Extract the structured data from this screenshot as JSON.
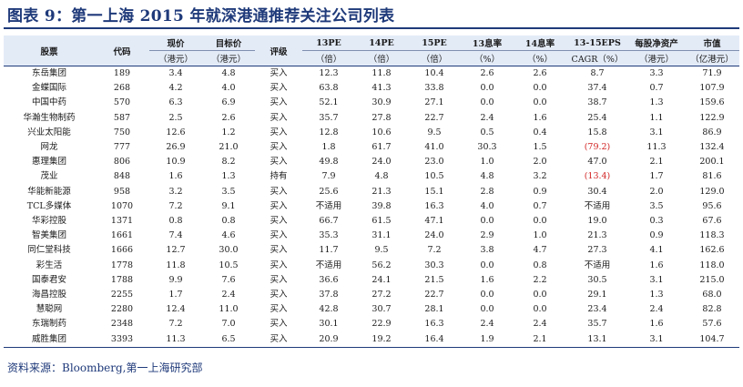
{
  "title": "图表 9：第一上海 2015 年就深港通推荐关注公司列表",
  "table": {
    "headers": [
      "股票",
      "代码",
      "现价",
      "目标价",
      "评级",
      "13PE",
      "14PE",
      "15PE",
      "13息率",
      "14息率",
      "13-15EPS",
      "每股净资产",
      "市值"
    ],
    "units": [
      "",
      "",
      "（港元）",
      "（港元）",
      "",
      "（倍）",
      "（倍）",
      "（倍）",
      "（%）",
      "（%）",
      "CAGR（%）",
      "（港元）",
      "（亿港元）"
    ],
    "rows": [
      [
        "东岳集团",
        "189",
        "3.4",
        "4.8",
        "买入",
        "12.3",
        "11.8",
        "10.4",
        "2.6",
        "2.6",
        "8.7",
        "3.3",
        "71.9"
      ],
      [
        "金蝶国际",
        "268",
        "4.2",
        "4.0",
        "买入",
        "63.8",
        "41.3",
        "33.8",
        "0.0",
        "0.0",
        "37.4",
        "0.7",
        "107.9"
      ],
      [
        "中国中药",
        "570",
        "6.3",
        "6.9",
        "买入",
        "52.1",
        "30.9",
        "27.1",
        "0.0",
        "0.0",
        "38.7",
        "1.3",
        "159.6"
      ],
      [
        "华瀚生物制药",
        "587",
        "2.5",
        "2.6",
        "买入",
        "35.7",
        "27.8",
        "22.7",
        "2.4",
        "1.6",
        "25.4",
        "1.1",
        "122.9"
      ],
      [
        "兴业太阳能",
        "750",
        "12.6",
        "1.2",
        "买入",
        "12.8",
        "10.6",
        "9.5",
        "0.5",
        "0.4",
        "15.8",
        "3.1",
        "86.9"
      ],
      [
        "网龙",
        "777",
        "26.9",
        "21.0",
        "买入",
        "1.8",
        "61.7",
        "41.0",
        "30.3",
        "1.5",
        "(79.2)",
        "11.3",
        "132.4"
      ],
      [
        "惠理集团",
        "806",
        "10.9",
        "8.2",
        "买入",
        "49.8",
        "24.0",
        "23.0",
        "1.0",
        "2.0",
        "47.0",
        "2.1",
        "200.1"
      ],
      [
        "茂业",
        "848",
        "1.6",
        "1.3",
        "持有",
        "7.9",
        "4.8",
        "10.5",
        "4.8",
        "3.2",
        "(13.4)",
        "1.7",
        "81.6"
      ],
      [
        "华能新能源",
        "958",
        "3.2",
        "3.5",
        "买入",
        "25.6",
        "21.3",
        "15.1",
        "2.8",
        "0.9",
        "30.4",
        "2.0",
        "129.0"
      ],
      [
        "TCL多媒体",
        "1070",
        "7.2",
        "9.1",
        "买入",
        "不适用",
        "39.8",
        "16.3",
        "4.0",
        "0.7",
        "不适用",
        "3.5",
        "95.6"
      ],
      [
        "华彩控股",
        "1371",
        "0.8",
        "0.8",
        "买入",
        "66.7",
        "61.5",
        "47.1",
        "0.0",
        "0.0",
        "19.0",
        "0.3",
        "67.6"
      ],
      [
        "智美集团",
        "1661",
        "7.4",
        "4.6",
        "买入",
        "35.3",
        "31.1",
        "24.0",
        "2.9",
        "1.0",
        "21.3",
        "0.9",
        "118.3"
      ],
      [
        "同仁堂科技",
        "1666",
        "12.7",
        "30.0",
        "买入",
        "11.7",
        "9.5",
        "7.2",
        "3.8",
        "4.7",
        "27.3",
        "4.1",
        "162.6"
      ],
      [
        "彩生活",
        "1778",
        "11.8",
        "10.5",
        "买入",
        "不适用",
        "56.2",
        "30.3",
        "0.0",
        "0.8",
        "不适用",
        "1.6",
        "118.0"
      ],
      [
        "国泰君安",
        "1788",
        "9.9",
        "7.6",
        "买入",
        "36.6",
        "24.1",
        "21.5",
        "1.6",
        "2.2",
        "30.5",
        "3.1",
        "215.0"
      ],
      [
        "海昌控股",
        "2255",
        "1.7",
        "2.4",
        "买入",
        "37.8",
        "27.2",
        "22.7",
        "0.0",
        "0.0",
        "29.1",
        "1.3",
        "68.0"
      ],
      [
        "慧聪网",
        "2280",
        "12.4",
        "11.0",
        "买入",
        "42.8",
        "30.7",
        "28.1",
        "0.0",
        "0.0",
        "23.4",
        "2.4",
        "82.8"
      ],
      [
        "东瑞制药",
        "2348",
        "7.2",
        "7.0",
        "买入",
        "30.1",
        "22.9",
        "16.3",
        "2.4",
        "2.4",
        "35.7",
        "1.6",
        "57.6"
      ],
      [
        "威胜集团",
        "3393",
        "11.3",
        "6.5",
        "买入",
        "20.9",
        "19.2",
        "16.4",
        "1.9",
        "2.1",
        "13.1",
        "3.1",
        "104.7"
      ]
    ],
    "negative_color": "#d11f1f"
  },
  "source": "资料来源：Bloomberg,第一上海研究部"
}
